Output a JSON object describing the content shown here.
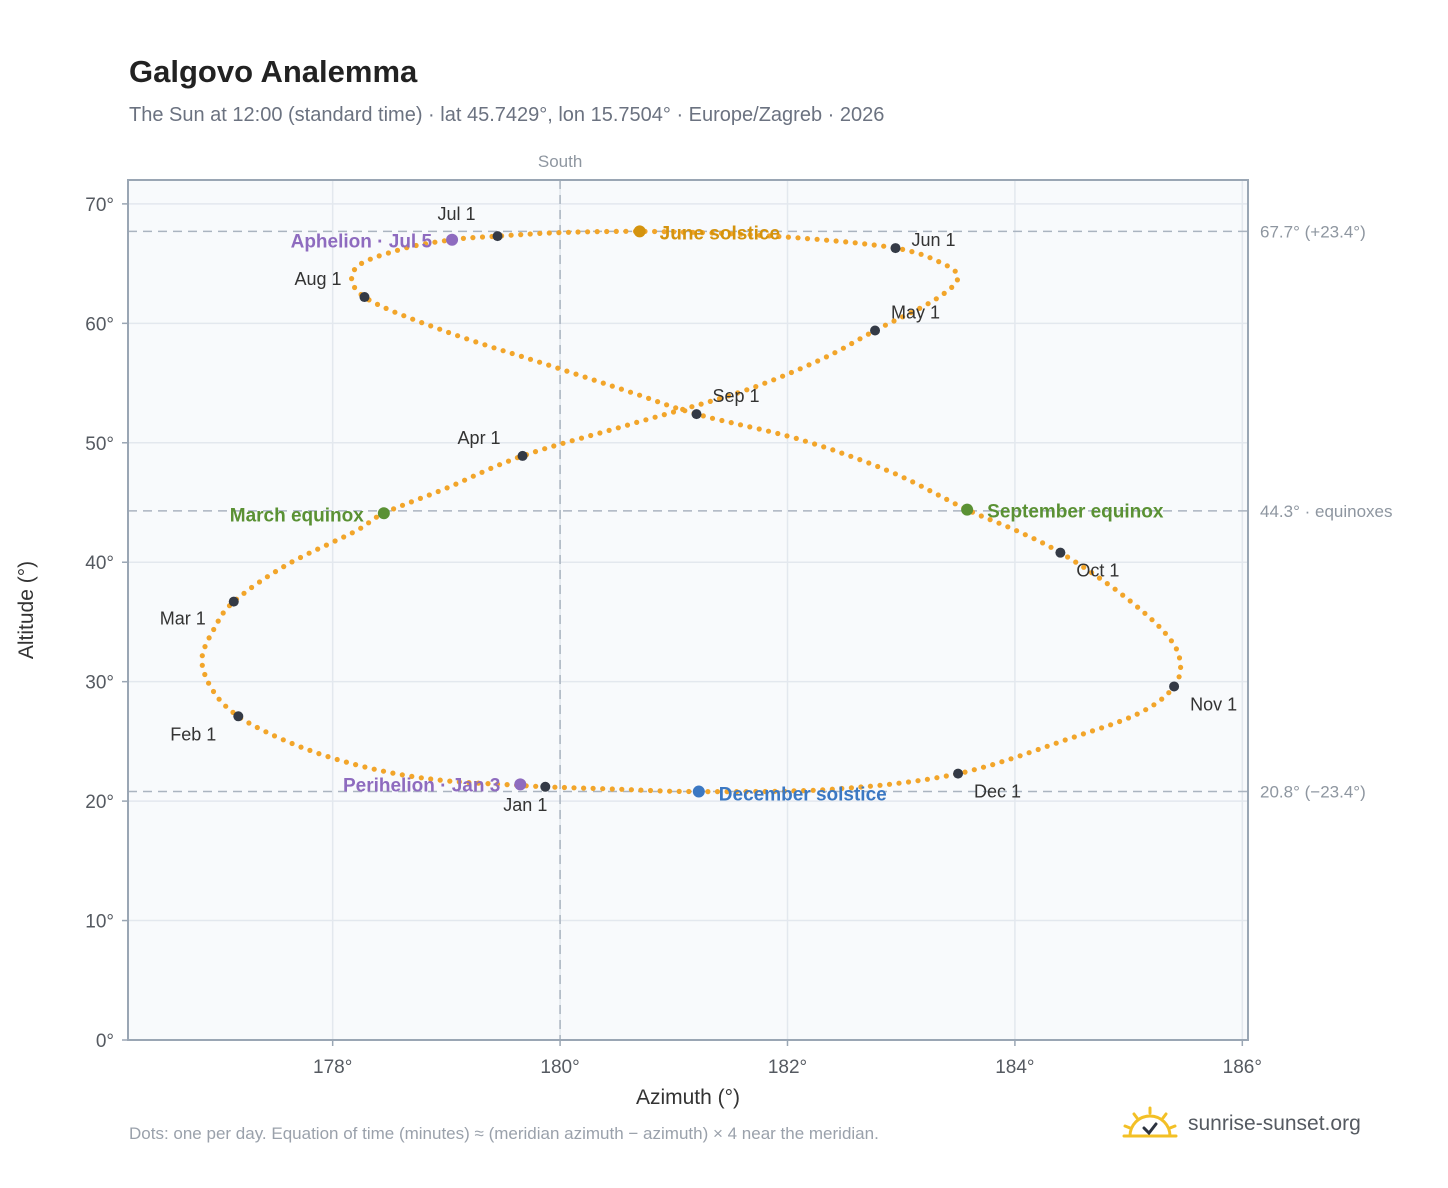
{
  "header": {
    "title": "Galgovo Analemma",
    "subtitle": "The Sun at 12:00 (standard time) · lat 45.7429°, lon 15.7504° · Europe/Zagreb · 2026"
  },
  "footnote": "Dots: one per day. Equation of time (minutes) ≈ (meridian azimuth − azimuth) × 4 near the meridian.",
  "brand": {
    "name": "sunrise-sunset.org",
    "icon": "sun-logo-icon"
  },
  "colors": {
    "curve": "#f2a52a",
    "month_dot": "#343a46",
    "perihelion_aphelion": "#8e6bbf",
    "june_solstice": "#d4930e",
    "equinox": "#5a9134",
    "december_solstice": "#3b78c3",
    "plot_bg": "#f8fafc",
    "grid": "#e3e8ee",
    "frame": "#9aa6b4"
  },
  "chart_data": {
    "type": "scatter",
    "title": "Galgovo Analemma",
    "subtitle": "The Sun at 12:00 (standard time) · lat 45.7429°, lon 15.7504° · Europe/Zagreb · 2026",
    "xlabel": "Azimuth (°)",
    "ylabel": "Altitude (°)",
    "xlim": [
      176.2,
      186.05
    ],
    "ylim": [
      0,
      72
    ],
    "x_ticks": [
      178,
      180,
      182,
      184,
      186
    ],
    "x_tick_labels": [
      "178°",
      "180°",
      "182°",
      "184°",
      "186°"
    ],
    "y_ticks": [
      0,
      10,
      20,
      30,
      40,
      50,
      60,
      70
    ],
    "y_tick_labels": [
      "0°",
      "10°",
      "20°",
      "30°",
      "40°",
      "50°",
      "60°",
      "70°"
    ],
    "grid": true,
    "meridian": {
      "azimuth": 180,
      "label": "South"
    },
    "reference_lines": [
      {
        "altitude": 67.7,
        "label": "67.7° (+23.4°)"
      },
      {
        "altitude": 44.3,
        "label": "44.3° · equinoxes"
      },
      {
        "altitude": 20.8,
        "label": "20.8° (−23.4°)"
      }
    ],
    "month_points": [
      {
        "label": "Jan 1",
        "azimuth": 179.87,
        "altitude": 21.2
      },
      {
        "label": "Feb 1",
        "azimuth": 177.17,
        "altitude": 27.1
      },
      {
        "label": "Mar 1",
        "azimuth": 177.13,
        "altitude": 36.7
      },
      {
        "label": "Apr 1",
        "azimuth": 179.67,
        "altitude": 48.9
      },
      {
        "label": "May 1",
        "azimuth": 182.77,
        "altitude": 59.4
      },
      {
        "label": "Jun 1",
        "azimuth": 182.95,
        "altitude": 66.3
      },
      {
        "label": "Jul 1",
        "azimuth": 179.45,
        "altitude": 67.3
      },
      {
        "label": "Aug 1",
        "azimuth": 178.28,
        "altitude": 62.2
      },
      {
        "label": "Sep 1",
        "azimuth": 181.2,
        "altitude": 52.4
      },
      {
        "label": "Oct 1",
        "azimuth": 184.4,
        "altitude": 40.8
      },
      {
        "label": "Nov 1",
        "azimuth": 185.4,
        "altitude": 29.6
      },
      {
        "label": "Dec 1",
        "azimuth": 183.5,
        "altitude": 22.3
      }
    ],
    "events": [
      {
        "label": "Perihelion · Jan 3",
        "azimuth": 179.65,
        "altitude": 21.4,
        "kind": "apsis"
      },
      {
        "label": "March equinox",
        "azimuth": 178.45,
        "altitude": 44.1,
        "kind": "equinox"
      },
      {
        "label": "June solstice",
        "azimuth": 180.7,
        "altitude": 67.7,
        "kind": "june"
      },
      {
        "label": "Aphelion · Jul 5",
        "azimuth": 179.05,
        "altitude": 67.0,
        "kind": "apsis"
      },
      {
        "label": "September equinox",
        "azimuth": 183.58,
        "altitude": 44.4,
        "kind": "equinox"
      },
      {
        "label": "December solstice",
        "azimuth": 181.22,
        "altitude": 20.8,
        "kind": "december"
      }
    ],
    "series": [
      {
        "type": "daily-dots",
        "points": [
          [
            179.87,
            21.2
          ],
          [
            179.5,
            21.4
          ],
          [
            179.0,
            21.7
          ],
          [
            178.5,
            22.4
          ],
          [
            178.0,
            23.6
          ],
          [
            177.55,
            25.2
          ],
          [
            177.17,
            27.1
          ],
          [
            176.95,
            29.2
          ],
          [
            176.85,
            31.8
          ],
          [
            176.95,
            34.3
          ],
          [
            177.13,
            36.7
          ],
          [
            177.6,
            39.8
          ],
          [
            178.2,
            42.6
          ],
          [
            178.45,
            44.1
          ],
          [
            179.0,
            46.2
          ],
          [
            179.67,
            48.9
          ],
          [
            180.6,
            51.5
          ],
          [
            181.6,
            54.3
          ],
          [
            182.3,
            57.0
          ],
          [
            182.77,
            59.4
          ],
          [
            183.3,
            62.0
          ],
          [
            183.5,
            63.9
          ],
          [
            183.3,
            65.3
          ],
          [
            182.95,
            66.3
          ],
          [
            182.3,
            67.0
          ],
          [
            181.5,
            67.5
          ],
          [
            180.7,
            67.7
          ],
          [
            180.0,
            67.6
          ],
          [
            179.45,
            67.3
          ],
          [
            179.05,
            67.0
          ],
          [
            178.6,
            66.2
          ],
          [
            178.2,
            64.6
          ],
          [
            178.28,
            62.2
          ],
          [
            179.0,
            59.3
          ],
          [
            179.9,
            56.5
          ],
          [
            180.6,
            54.3
          ],
          [
            181.2,
            52.4
          ],
          [
            182.1,
            50.3
          ],
          [
            182.9,
            47.6
          ],
          [
            183.58,
            44.4
          ],
          [
            184.0,
            42.7
          ],
          [
            184.4,
            40.8
          ],
          [
            184.9,
            37.6
          ],
          [
            185.3,
            34.3
          ],
          [
            185.45,
            31.9
          ],
          [
            185.4,
            29.6
          ],
          [
            185.1,
            27.4
          ],
          [
            184.5,
            25.3
          ],
          [
            183.5,
            22.3
          ],
          [
            182.4,
            21.0
          ],
          [
            181.22,
            20.8
          ],
          [
            180.5,
            21.0
          ],
          [
            179.87,
            21.2
          ]
        ]
      }
    ]
  }
}
